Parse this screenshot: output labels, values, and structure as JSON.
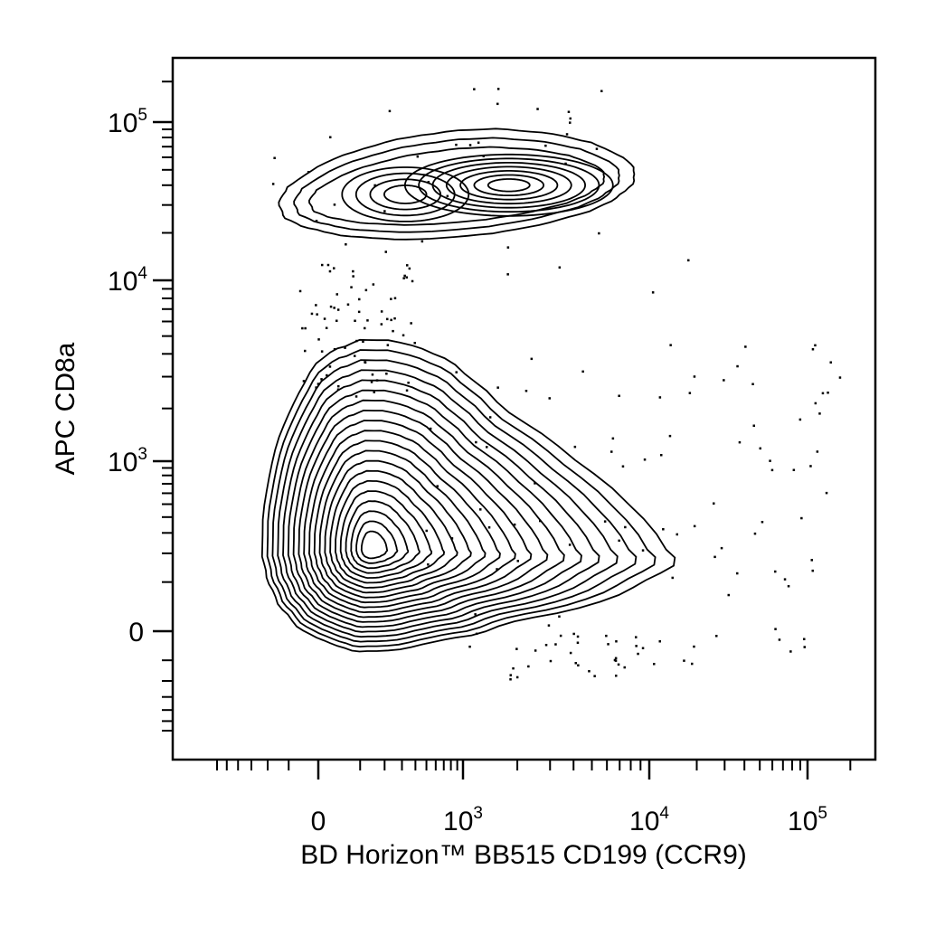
{
  "chart_data": {
    "type": "contour",
    "xlabel": "BD Horizon™ BB515 CD199 (CCR9)",
    "ylabel": "APC CD8a",
    "x_scale": "biexponential",
    "y_scale": "biexponential",
    "x_ticks": [
      {
        "value": 0,
        "base": "0",
        "exp": ""
      },
      {
        "value": 1000,
        "base": "10",
        "exp": "3"
      },
      {
        "value": 10000,
        "base": "10",
        "exp": "4"
      },
      {
        "value": 100000,
        "base": "10",
        "exp": "5"
      }
    ],
    "y_ticks": [
      {
        "value": 0,
        "base": "0",
        "exp": ""
      },
      {
        "value": 1000,
        "base": "10",
        "exp": "3"
      },
      {
        "value": 10000,
        "base": "10",
        "exp": "4"
      },
      {
        "value": 100000,
        "base": "10",
        "exp": "5"
      }
    ],
    "populations": [
      {
        "name": "",
        "center_x": 100,
        "center_y": 100,
        "levels": 20
      },
      {
        "name": "",
        "center_x": 100,
        "center_y": 35000,
        "levels": 6
      },
      {
        "name": "",
        "center_x": 1800,
        "center_y": 40000,
        "levels": 9
      }
    ],
    "grid": false,
    "legend": "none"
  }
}
